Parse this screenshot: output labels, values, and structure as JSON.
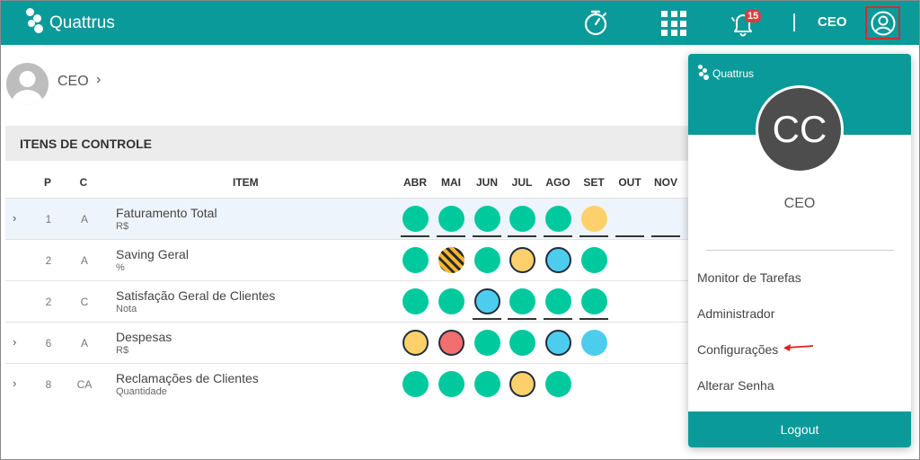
{
  "app": {
    "brand": "Quattrus",
    "brand_color": "#0a9a9a"
  },
  "header": {
    "notifications_count": "15",
    "role_label": "CEO",
    "icons": [
      "stopwatch-icon",
      "apps-grid-icon",
      "bell-icon",
      "user-circle-icon"
    ]
  },
  "profile": {
    "name": "CEO",
    "chevron": "›"
  },
  "section": {
    "title": "ITENS DE CONTROLE"
  },
  "table": {
    "headers": {
      "p": "P",
      "c": "C",
      "item": "ITEM"
    },
    "months": [
      "ABR",
      "MAI",
      "JUN",
      "JUL",
      "AGO",
      "SET",
      "OUT",
      "NOV"
    ],
    "rows": [
      {
        "expandable": true,
        "p": "1",
        "c": "A",
        "name": "Faturamento Total",
        "unit": "R$",
        "status": [
          "green",
          "green",
          "green",
          "green",
          "green",
          "yellow"
        ]
      },
      {
        "expandable": false,
        "p": "2",
        "c": "A",
        "name": "Saving Geral",
        "unit": "%",
        "status": [
          "green",
          "striped",
          "green",
          "yellow-outlined",
          "blue-outlined",
          "green"
        ]
      },
      {
        "expandable": false,
        "p": "2",
        "c": "C",
        "name": "Satisfação Geral de Clientes",
        "unit": "Nota",
        "status": [
          "green",
          "green",
          "blue-outlined",
          "green",
          "green",
          "green"
        ]
      },
      {
        "expandable": true,
        "p": "6",
        "c": "A",
        "name": "Despesas",
        "unit": "R$",
        "status": [
          "yellow-outlined",
          "red-outlined",
          "green",
          "green",
          "blue-outlined",
          "blue"
        ]
      },
      {
        "expandable": true,
        "p": "8",
        "c": "CA",
        "name": "Reclamações de Clientes",
        "unit": "Quantidade",
        "status": [
          "green",
          "green",
          "green",
          "yellow-outlined",
          "green"
        ]
      }
    ]
  },
  "dropdown": {
    "brand": "Quattrus",
    "initials": "CC",
    "role": "CEO",
    "items": [
      "Monitor de Tarefas",
      "Administrador",
      "Configurações",
      "Alterar Senha"
    ],
    "logout_label": "Logout",
    "annotation_color": "#e02020"
  }
}
